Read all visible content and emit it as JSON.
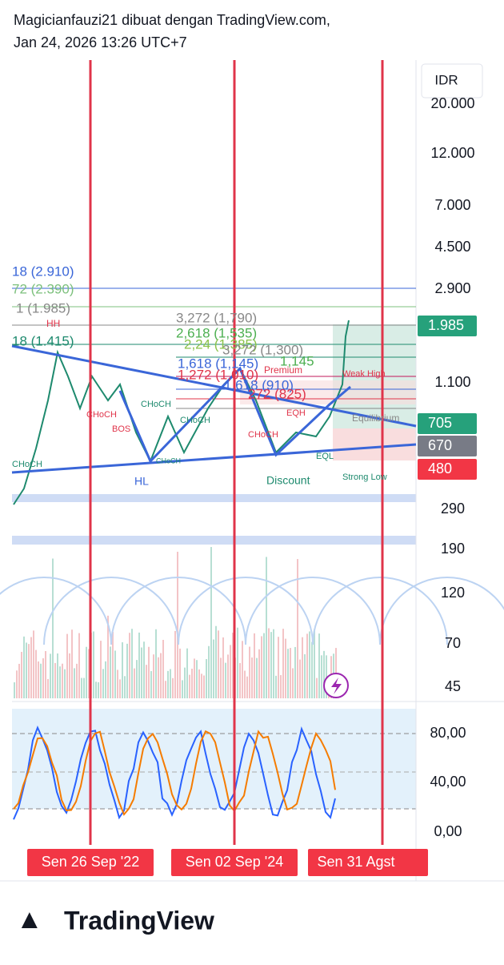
{
  "header": {
    "line1": "Magicianfauzi21 dibuat dengan TradingView.com,",
    "line2": "Jan 24, 2026 13:26 UTC+7"
  },
  "currency": "IDR",
  "price_axis": [
    "20.000",
    "12.000",
    "7.000",
    "4.500",
    "2.900",
    "1.100",
    "290",
    "190",
    "120",
    "70",
    "45"
  ],
  "badges": [
    "1.985",
    "705",
    "670",
    "480"
  ],
  "oscillator_axis": [
    "80,00",
    "40,00",
    "0,00"
  ],
  "dates": [
    "Sen 26 Sep '22",
    "Sen 02 Sep '24",
    "Sen 31 Agst"
  ],
  "annotations": [
    "18 (2.910)",
    "72 (2.390)",
    "1 (1.985)",
    "HH",
    "18 (1.415)",
    "3,272 (1,790)",
    "2,618 (1,535)",
    "2,24 (1,385)",
    "3,272 (1,300)",
    "1,618 (1,145)",
    "1,145",
    "1,272 (1,010)",
    "Premium",
    "1,618 (910)",
    "272 (825)",
    "Weak High",
    "CHoCH",
    "CHoCH",
    "BOS",
    "CHoCH",
    "EQH",
    "Equilibrium",
    "CHoCH",
    "CHoCH",
    "CHoCH",
    "HL",
    "Discount",
    "EQL",
    "Strong Low"
  ],
  "logo": "TradingView"
}
